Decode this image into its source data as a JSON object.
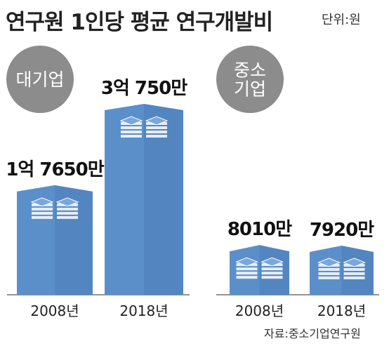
{
  "title": "연구원 1인당 평균 연구개발비",
  "unit": "단위:원",
  "source": "자료:중소기업연구원",
  "colors": {
    "bar": "#5b8fca",
    "bar_dark": "#3f70aa",
    "bar_top": "#7aa8dc",
    "badge": "#8c8c8c"
  },
  "chart_data": [
    {
      "type": "bar",
      "group": "대기업",
      "categories": [
        "2008년",
        "2018년"
      ],
      "values": [
        176500000,
        307500000
      ],
      "value_labels": [
        "1억 7650만",
        "3억 750만"
      ]
    },
    {
      "type": "bar",
      "group": "중소\n기업",
      "categories": [
        "2008년",
        "2018년"
      ],
      "values": [
        80100000,
        79200000
      ],
      "value_labels": [
        "8010만",
        "7920만"
      ]
    }
  ]
}
